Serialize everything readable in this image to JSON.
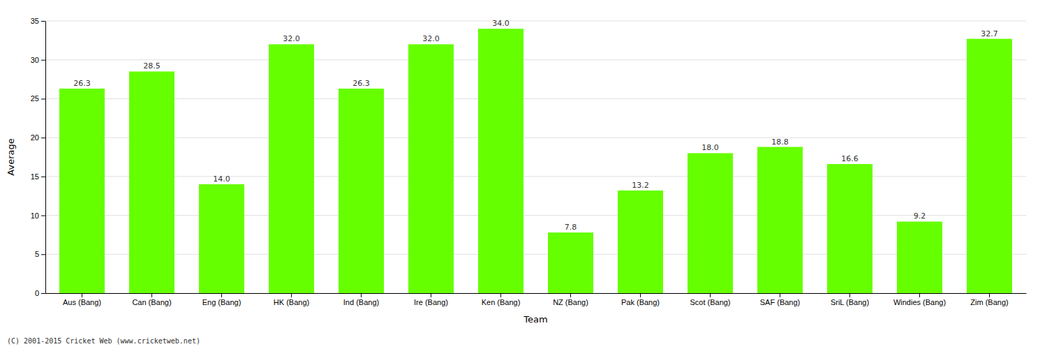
{
  "chart_data": {
    "type": "bar",
    "categories": [
      "Aus (Bang)",
      "Can (Bang)",
      "Eng (Bang)",
      "HK (Bang)",
      "Ind (Bang)",
      "Ire (Bang)",
      "Ken (Bang)",
      "NZ (Bang)",
      "Pak (Bang)",
      "Scot (Bang)",
      "SAF (Bang)",
      "SriL (Bang)",
      "Windies (Bang)",
      "Zim (Bang)"
    ],
    "values": [
      26.3,
      28.5,
      14.0,
      32.0,
      26.3,
      32.0,
      34.0,
      7.8,
      13.2,
      18.0,
      18.8,
      16.6,
      9.2,
      32.7
    ],
    "value_labels": [
      "26.3",
      "28.5",
      "14.0",
      "32.0",
      "26.3",
      "32.0",
      "34.0",
      "7.8",
      "13.2",
      "18.0",
      "18.8",
      "16.6",
      "9.2",
      "32.7"
    ],
    "color": "#66ff00",
    "xlabel": "Team",
    "ylabel": "Average",
    "ylim": [
      0,
      35
    ],
    "yticks": [
      0,
      5,
      10,
      15,
      20,
      25,
      30,
      35
    ],
    "grid": true,
    "data_labels": true,
    "annotations": [
      "(C) 2001-2015 Cricket Web (www.cricketweb.net)"
    ]
  }
}
